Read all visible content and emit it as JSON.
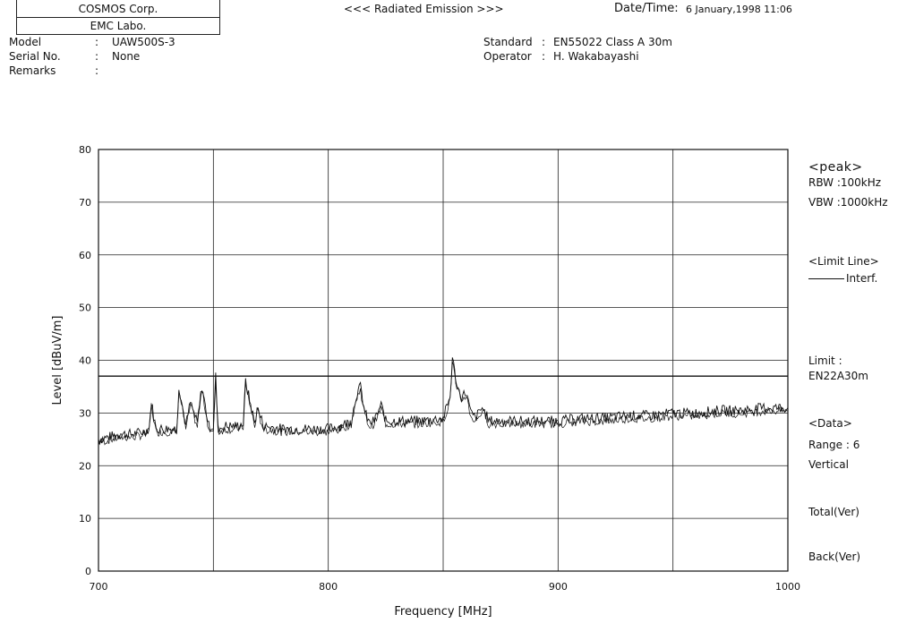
{
  "header": {
    "company": "COSMOS Corp.",
    "lab": "EMC Labo.",
    "test_title": "<<< Radiated Emission >>>",
    "date_time_label": "Date/Time:",
    "date_time_value": "6 January,1998 11:06"
  },
  "info": {
    "model_label": "Model",
    "model_value": "UAW500S-3",
    "serial_label": "Serial No.",
    "serial_value": "None",
    "remarks_label": "Remarks",
    "remarks_value": "",
    "standard_label": "Standard",
    "standard_value": "EN55022 Class A 30m",
    "operator_label": "Operator",
    "operator_value": "H. Wakabayashi",
    "colon": ":"
  },
  "side_panel": {
    "peak": "<peak>",
    "rbw": "RBW :100kHz",
    "vbw": "VBW :1000kHz",
    "limit_line": "<Limit Line>",
    "interf": "Interf.",
    "limit_label": "Limit :",
    "limit_value": "EN22A30m",
    "data_label": "<Data>",
    "range": "Range : 6",
    "polarization": "Vertical",
    "total": "Total(Ver)",
    "back": "Back(Ver)"
  },
  "colors": {
    "line": "#111111",
    "grid": "#222222",
    "background": "#ffffff"
  },
  "chart_data": {
    "type": "line",
    "title": "",
    "xlabel": "Frequency [MHz]",
    "ylabel": "Level [dBuV/m]",
    "xlim": [
      700,
      1000
    ],
    "ylim": [
      0,
      80
    ],
    "x_ticks": [
      700,
      800,
      900,
      1000
    ],
    "y_ticks": [
      0,
      10,
      20,
      30,
      40,
      50,
      60,
      70,
      80
    ],
    "grid": true,
    "limit_line": {
      "name": "Interf.",
      "value": 37
    },
    "series": [
      {
        "name": "",
        "x": [
          700,
          705,
          710,
          715,
          720,
          722,
          723,
          725,
          730,
          734,
          735,
          738,
          740,
          743,
          745,
          748,
          750,
          751,
          752,
          755,
          760,
          763,
          764,
          768,
          769,
          772,
          780,
          790,
          800,
          805,
          810,
          812,
          814,
          816,
          818,
          820,
          823,
          825,
          830,
          840,
          850,
          853,
          854,
          856,
          858,
          860,
          862,
          864,
          867,
          870,
          880,
          890,
          900,
          910,
          920,
          930,
          940,
          950,
          960,
          970,
          980,
          990,
          1000
        ],
        "y": [
          25,
          25.5,
          26,
          26,
          26.5,
          27,
          32,
          27,
          27,
          27,
          35,
          27.5,
          32,
          28,
          35,
          27.5,
          27,
          37,
          27,
          27.5,
          27.5,
          28,
          36,
          28,
          31,
          27.5,
          27,
          27,
          27,
          27.5,
          28.5,
          33,
          35,
          30,
          28,
          28.5,
          31.5,
          28.5,
          28.5,
          28.5,
          29,
          33,
          40.5,
          35,
          33,
          34,
          30,
          29,
          31,
          28.5,
          28.5,
          28.5,
          28.5,
          29,
          29,
          29.5,
          29.5,
          30,
          30,
          30.5,
          30.5,
          31,
          31
        ]
      }
    ]
  }
}
